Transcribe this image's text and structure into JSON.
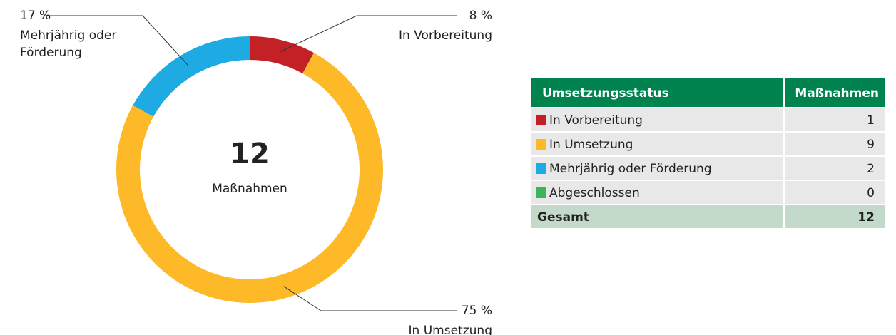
{
  "chart_data": {
    "type": "pie",
    "donut": true,
    "categories": [
      "In Vorbereitung",
      "In Umsetzung",
      "Mehrjährig oder Förderung"
    ],
    "values": [
      8,
      75,
      17
    ],
    "value_labels": [
      "8 %",
      "75 %",
      "17 %"
    ],
    "colors": [
      "#c42127",
      "#fdb928",
      "#1eabe3"
    ],
    "center_total": 12,
    "center_label": "Maßnahmen"
  },
  "table": {
    "header": [
      "Umsetzungsstatus",
      "Maßnahmen"
    ],
    "rows": [
      {
        "label": "In Vorbereitung",
        "value": 1,
        "color": "#c42127"
      },
      {
        "label": "In Umsetzung",
        "value": 9,
        "color": "#fdb928"
      },
      {
        "label": "Mehrjährig oder Förderung",
        "value": 2,
        "color": "#1eabe3"
      },
      {
        "label": "Abgeschlossen",
        "value": 0,
        "color": "#3cb55a"
      }
    ],
    "total": {
      "label": "Gesamt",
      "value": 12
    }
  }
}
